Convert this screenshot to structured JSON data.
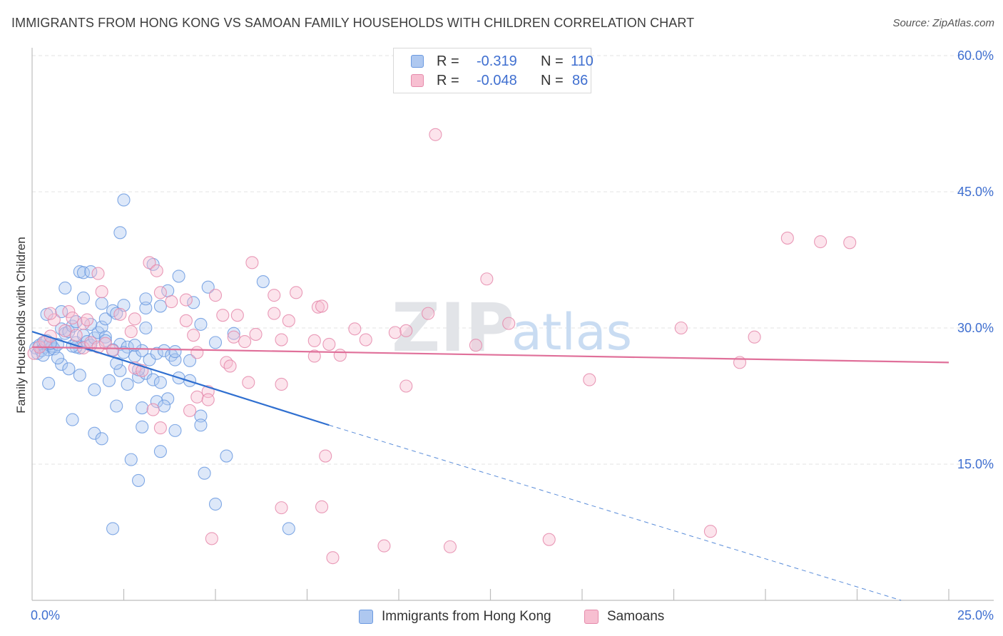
{
  "header": {
    "title": "IMMIGRANTS FROM HONG KONG VS SAMOAN FAMILY HOUSEHOLDS WITH CHILDREN CORRELATION CHART",
    "source": "Source: ZipAtlas.com"
  },
  "watermark": {
    "zip": "ZIP",
    "atlas": "atlas"
  },
  "legend_top": [
    {
      "r_label": "R =",
      "r_value": "-0.319",
      "n_label": "N =",
      "n_value": "110",
      "fill": "#aec8f0",
      "stroke": "#6b9ae0"
    },
    {
      "r_label": "R =",
      "r_value": "-0.048",
      "n_label": "N =",
      "n_value": "86",
      "fill": "#f7bfd1",
      "stroke": "#e58aab"
    }
  ],
  "legend_bottom": [
    {
      "label": "Immigrants from Hong Kong",
      "fill": "#aec8f0",
      "stroke": "#6b9ae0"
    },
    {
      "label": "Samoans",
      "fill": "#f7bfd1",
      "stroke": "#e58aab"
    }
  ],
  "chart_data": {
    "type": "scatter",
    "title": "IMMIGRANTS FROM HONG KONG VS SAMOAN FAMILY HOUSEHOLDS WITH CHILDREN CORRELATION CHART",
    "xlabel": "",
    "ylabel": "Family Households with Children",
    "xlim": [
      0,
      25
    ],
    "ylim": [
      0,
      60
    ],
    "x_tick_labels": [
      {
        "value": 0,
        "label": "0.0%"
      },
      {
        "value": 25,
        "label": "25.0%"
      }
    ],
    "y_tick_labels": [
      {
        "value": 15,
        "label": "15.0%"
      },
      {
        "value": 30,
        "label": "30.0%"
      },
      {
        "value": 45,
        "label": "45.0%"
      },
      {
        "value": 60,
        "label": "60.0%"
      }
    ],
    "x_minor_ticks": [
      2.5,
      5,
      7.5,
      10,
      12.5,
      15,
      17.5,
      20,
      22.5,
      25
    ],
    "grid": true,
    "colors": {
      "hong_kong": "#6b9ae0",
      "hong_kong_line": "#2f6fd0",
      "samoans": "#e58aab",
      "samoans_line": "#e0709a"
    },
    "series": [
      {
        "name": "Immigrants from Hong Kong",
        "r": -0.319,
        "n": 110,
        "trend": {
          "x0": 0,
          "y0": 29.6,
          "x1": 8.1,
          "y1": 19.3,
          "dash_x1": 23.7,
          "dash_y1": 0
        },
        "points": [
          [
            0.1,
            27.8
          ],
          [
            0.15,
            27.2
          ],
          [
            0.2,
            28.1
          ],
          [
            0.25,
            27.5
          ],
          [
            0.3,
            28.4
          ],
          [
            0.35,
            27.9
          ],
          [
            0.4,
            28.6
          ],
          [
            0.45,
            27.6
          ],
          [
            0.5,
            28.3
          ],
          [
            0.55,
            28.0
          ],
          [
            0.6,
            27.7
          ],
          [
            0.7,
            28.2
          ],
          [
            0.8,
            29.9
          ],
          [
            0.9,
            29.4
          ],
          [
            1.0,
            29.6
          ],
          [
            1.1,
            30.2
          ],
          [
            1.2,
            28.4
          ],
          [
            1.3,
            27.8
          ],
          [
            1.4,
            29.2
          ],
          [
            1.5,
            28.5
          ],
          [
            1.6,
            28.1
          ],
          [
            1.7,
            28.9
          ],
          [
            1.8,
            29.5
          ],
          [
            1.9,
            30.1
          ],
          [
            2.0,
            29.0
          ],
          [
            0.4,
            31.5
          ],
          [
            0.8,
            31.8
          ],
          [
            1.2,
            30.7
          ],
          [
            1.6,
            30.4
          ],
          [
            2.0,
            31.0
          ],
          [
            0.9,
            34.4
          ],
          [
            1.4,
            33.3
          ],
          [
            1.9,
            32.7
          ],
          [
            2.2,
            31.9
          ],
          [
            2.5,
            32.5
          ],
          [
            1.3,
            36.2
          ],
          [
            1.4,
            36.1
          ],
          [
            2.4,
            28.2
          ],
          [
            2.6,
            27.9
          ],
          [
            2.8,
            26.9
          ],
          [
            3.0,
            27.5
          ],
          [
            3.2,
            26.5
          ],
          [
            3.4,
            27.2
          ],
          [
            3.6,
            27.5
          ],
          [
            3.8,
            27.0
          ],
          [
            2.2,
            27.6
          ],
          [
            2.5,
            27.3
          ],
          [
            2.8,
            28.1
          ],
          [
            3.1,
            30.0
          ],
          [
            3.1,
            32.2
          ],
          [
            3.3,
            37.0
          ],
          [
            3.5,
            32.4
          ],
          [
            3.7,
            34.1
          ],
          [
            4.0,
            35.7
          ],
          [
            4.4,
            32.8
          ],
          [
            4.8,
            34.5
          ],
          [
            4.6,
            30.4
          ],
          [
            5.0,
            28.4
          ],
          [
            5.5,
            29.4
          ],
          [
            6.3,
            35.1
          ],
          [
            0.8,
            26.0
          ],
          [
            1.0,
            25.5
          ],
          [
            1.3,
            24.8
          ],
          [
            0.45,
            23.9
          ],
          [
            1.7,
            23.2
          ],
          [
            2.1,
            24.2
          ],
          [
            2.6,
            23.8
          ],
          [
            2.9,
            24.6
          ],
          [
            3.1,
            25.0
          ],
          [
            3.3,
            24.3
          ],
          [
            3.5,
            24.0
          ],
          [
            3.7,
            22.2
          ],
          [
            4.0,
            24.5
          ],
          [
            4.3,
            24.2
          ],
          [
            3.9,
            26.5
          ],
          [
            3.9,
            27.4
          ],
          [
            4.3,
            26.4
          ],
          [
            2.4,
            25.3
          ],
          [
            2.9,
            25.4
          ],
          [
            2.3,
            26.1
          ],
          [
            1.6,
            36.2
          ],
          [
            2.4,
            40.5
          ],
          [
            2.5,
            44.1
          ],
          [
            3.1,
            33.2
          ],
          [
            2.3,
            31.6
          ],
          [
            1.1,
            19.9
          ],
          [
            1.7,
            18.4
          ],
          [
            1.9,
            17.8
          ],
          [
            2.3,
            21.4
          ],
          [
            3.0,
            21.2
          ],
          [
            3.4,
            21.9
          ],
          [
            3.6,
            21.4
          ],
          [
            3.0,
            19.1
          ],
          [
            3.9,
            18.7
          ],
          [
            4.6,
            20.3
          ],
          [
            4.6,
            19.3
          ],
          [
            3.5,
            16.4
          ],
          [
            2.7,
            15.5
          ],
          [
            2.9,
            13.2
          ],
          [
            4.7,
            14.0
          ],
          [
            5.3,
            15.9
          ],
          [
            5.0,
            10.6
          ],
          [
            2.2,
            7.9
          ],
          [
            7.0,
            7.9
          ],
          [
            2.0,
            28.6
          ],
          [
            1.2,
            27.9
          ],
          [
            0.7,
            26.7
          ],
          [
            0.3,
            27.0
          ],
          [
            1.1,
            28.0
          ],
          [
            0.5,
            28.3
          ]
        ]
      },
      {
        "name": "Samoans",
        "r": -0.048,
        "n": 86,
        "trend": {
          "x0": 0,
          "y0": 27.9,
          "x1": 25,
          "y1": 26.2
        },
        "points": [
          [
            0.05,
            27.2
          ],
          [
            0.2,
            27.9
          ],
          [
            0.35,
            28.5
          ],
          [
            0.5,
            29.1
          ],
          [
            0.6,
            30.9
          ],
          [
            0.9,
            29.7
          ],
          [
            1.0,
            31.8
          ],
          [
            1.2,
            29.2
          ],
          [
            1.4,
            27.8
          ],
          [
            1.6,
            28.4
          ],
          [
            1.8,
            27.9
          ],
          [
            2.0,
            28.3
          ],
          [
            2.2,
            27.5
          ],
          [
            0.5,
            31.6
          ],
          [
            1.1,
            31.1
          ],
          [
            1.4,
            30.5
          ],
          [
            1.5,
            30.9
          ],
          [
            1.8,
            36.0
          ],
          [
            1.9,
            34.0
          ],
          [
            2.4,
            31.5
          ],
          [
            2.7,
            29.6
          ],
          [
            2.8,
            31.0
          ],
          [
            2.8,
            25.6
          ],
          [
            3.0,
            25.3
          ],
          [
            3.2,
            37.2
          ],
          [
            3.4,
            36.3
          ],
          [
            3.5,
            33.9
          ],
          [
            3.8,
            32.9
          ],
          [
            4.2,
            33.1
          ],
          [
            4.2,
            30.8
          ],
          [
            4.4,
            29.2
          ],
          [
            4.5,
            27.3
          ],
          [
            4.5,
            22.4
          ],
          [
            4.8,
            23.0
          ],
          [
            4.8,
            22.1
          ],
          [
            5.0,
            33.6
          ],
          [
            5.2,
            31.4
          ],
          [
            5.3,
            26.2
          ],
          [
            5.4,
            25.8
          ],
          [
            5.5,
            29.0
          ],
          [
            5.6,
            31.4
          ],
          [
            5.8,
            28.5
          ],
          [
            5.9,
            24.0
          ],
          [
            6.0,
            37.2
          ],
          [
            6.1,
            29.3
          ],
          [
            6.6,
            33.6
          ],
          [
            6.6,
            31.6
          ],
          [
            6.8,
            28.7
          ],
          [
            6.8,
            23.8
          ],
          [
            7.0,
            30.8
          ],
          [
            7.2,
            33.9
          ],
          [
            7.7,
            28.6
          ],
          [
            7.7,
            26.9
          ],
          [
            7.8,
            32.3
          ],
          [
            7.9,
            32.4
          ],
          [
            8.1,
            28.2
          ],
          [
            8.4,
            27.0
          ],
          [
            8.8,
            29.9
          ],
          [
            9.1,
            28.7
          ],
          [
            9.9,
            29.5
          ],
          [
            10.2,
            29.7
          ],
          [
            10.2,
            23.6
          ],
          [
            10.8,
            31.6
          ],
          [
            11.0,
            51.3
          ],
          [
            12.1,
            28.1
          ],
          [
            12.4,
            35.4
          ],
          [
            13.0,
            30.5
          ],
          [
            15.2,
            24.3
          ],
          [
            17.7,
            30.0
          ],
          [
            19.3,
            26.2
          ],
          [
            19.7,
            29.0
          ],
          [
            20.6,
            39.9
          ],
          [
            21.5,
            39.5
          ],
          [
            22.3,
            39.4
          ],
          [
            8.0,
            15.9
          ],
          [
            6.8,
            10.2
          ],
          [
            7.9,
            10.3
          ],
          [
            4.9,
            6.8
          ],
          [
            8.2,
            4.7
          ],
          [
            9.6,
            6.0
          ],
          [
            11.4,
            5.9
          ],
          [
            14.1,
            6.7
          ],
          [
            18.5,
            7.6
          ],
          [
            3.3,
            21.0
          ],
          [
            3.5,
            19.0
          ],
          [
            4.3,
            20.9
          ]
        ]
      }
    ]
  }
}
